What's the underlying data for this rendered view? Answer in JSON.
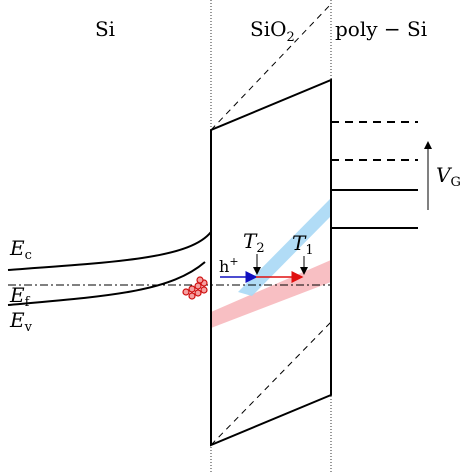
{
  "regions": [
    {
      "text": "Si"
    },
    {
      "text": "SiO",
      "sub": "2"
    },
    {
      "text": "poly − Si"
    }
  ],
  "bands": [
    {
      "text": "E",
      "sub": "c"
    },
    {
      "text": "E",
      "sub": "f"
    },
    {
      "text": "E",
      "sub": "v"
    }
  ],
  "carrier": {
    "text": "h",
    "sup": "+"
  },
  "tunneling": [
    {
      "text": "T",
      "sub": "2"
    },
    {
      "text": "T",
      "sub": "1"
    }
  ],
  "gate_voltage": {
    "text": "V",
    "sub": "G"
  }
}
